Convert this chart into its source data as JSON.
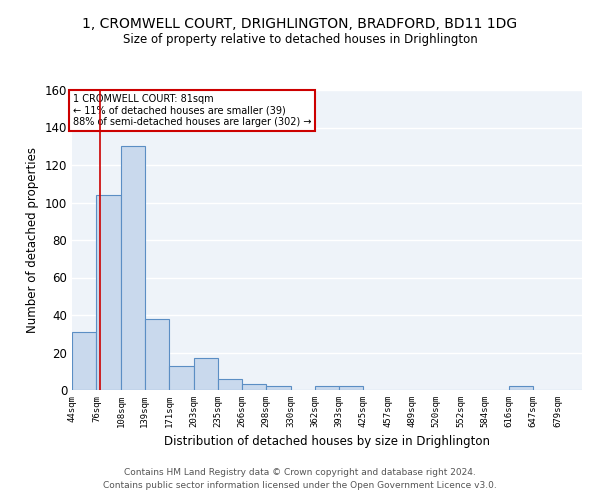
{
  "title1": "1, CROMWELL COURT, DRIGHLINGTON, BRADFORD, BD11 1DG",
  "title2": "Size of property relative to detached houses in Drighlington",
  "xlabel": "Distribution of detached houses by size in Drighlington",
  "ylabel": "Number of detached properties",
  "bar_edges": [
    44,
    76,
    108,
    139,
    171,
    203,
    235,
    266,
    298,
    330,
    362,
    393,
    425,
    457,
    489,
    520,
    552,
    584,
    616,
    647,
    679
  ],
  "bar_heights": [
    31,
    104,
    130,
    38,
    13,
    17,
    6,
    3,
    2,
    0,
    2,
    2,
    0,
    0,
    0,
    0,
    0,
    0,
    2,
    0,
    0
  ],
  "bar_color": "#c9d9ed",
  "bar_edgecolor": "#5b8ec4",
  "property_line_x": 81,
  "ylim": [
    0,
    160
  ],
  "yticks": [
    0,
    20,
    40,
    60,
    80,
    100,
    120,
    140,
    160
  ],
  "annotation_text": "1 CROMWELL COURT: 81sqm\n← 11% of detached houses are smaller (39)\n88% of semi-detached houses are larger (302) →",
  "annotation_box_color": "#ffffff",
  "annotation_border_color": "#cc0000",
  "footer1": "Contains HM Land Registry data © Crown copyright and database right 2024.",
  "footer2": "Contains public sector information licensed under the Open Government Licence v3.0.",
  "bg_color": "#eef3f9",
  "grid_color": "#ffffff",
  "tick_labels": [
    "44sqm",
    "76sqm",
    "108sqm",
    "139sqm",
    "171sqm",
    "203sqm",
    "235sqm",
    "266sqm",
    "298sqm",
    "330sqm",
    "362sqm",
    "393sqm",
    "425sqm",
    "457sqm",
    "489sqm",
    "520sqm",
    "552sqm",
    "584sqm",
    "616sqm",
    "647sqm",
    "679sqm"
  ]
}
